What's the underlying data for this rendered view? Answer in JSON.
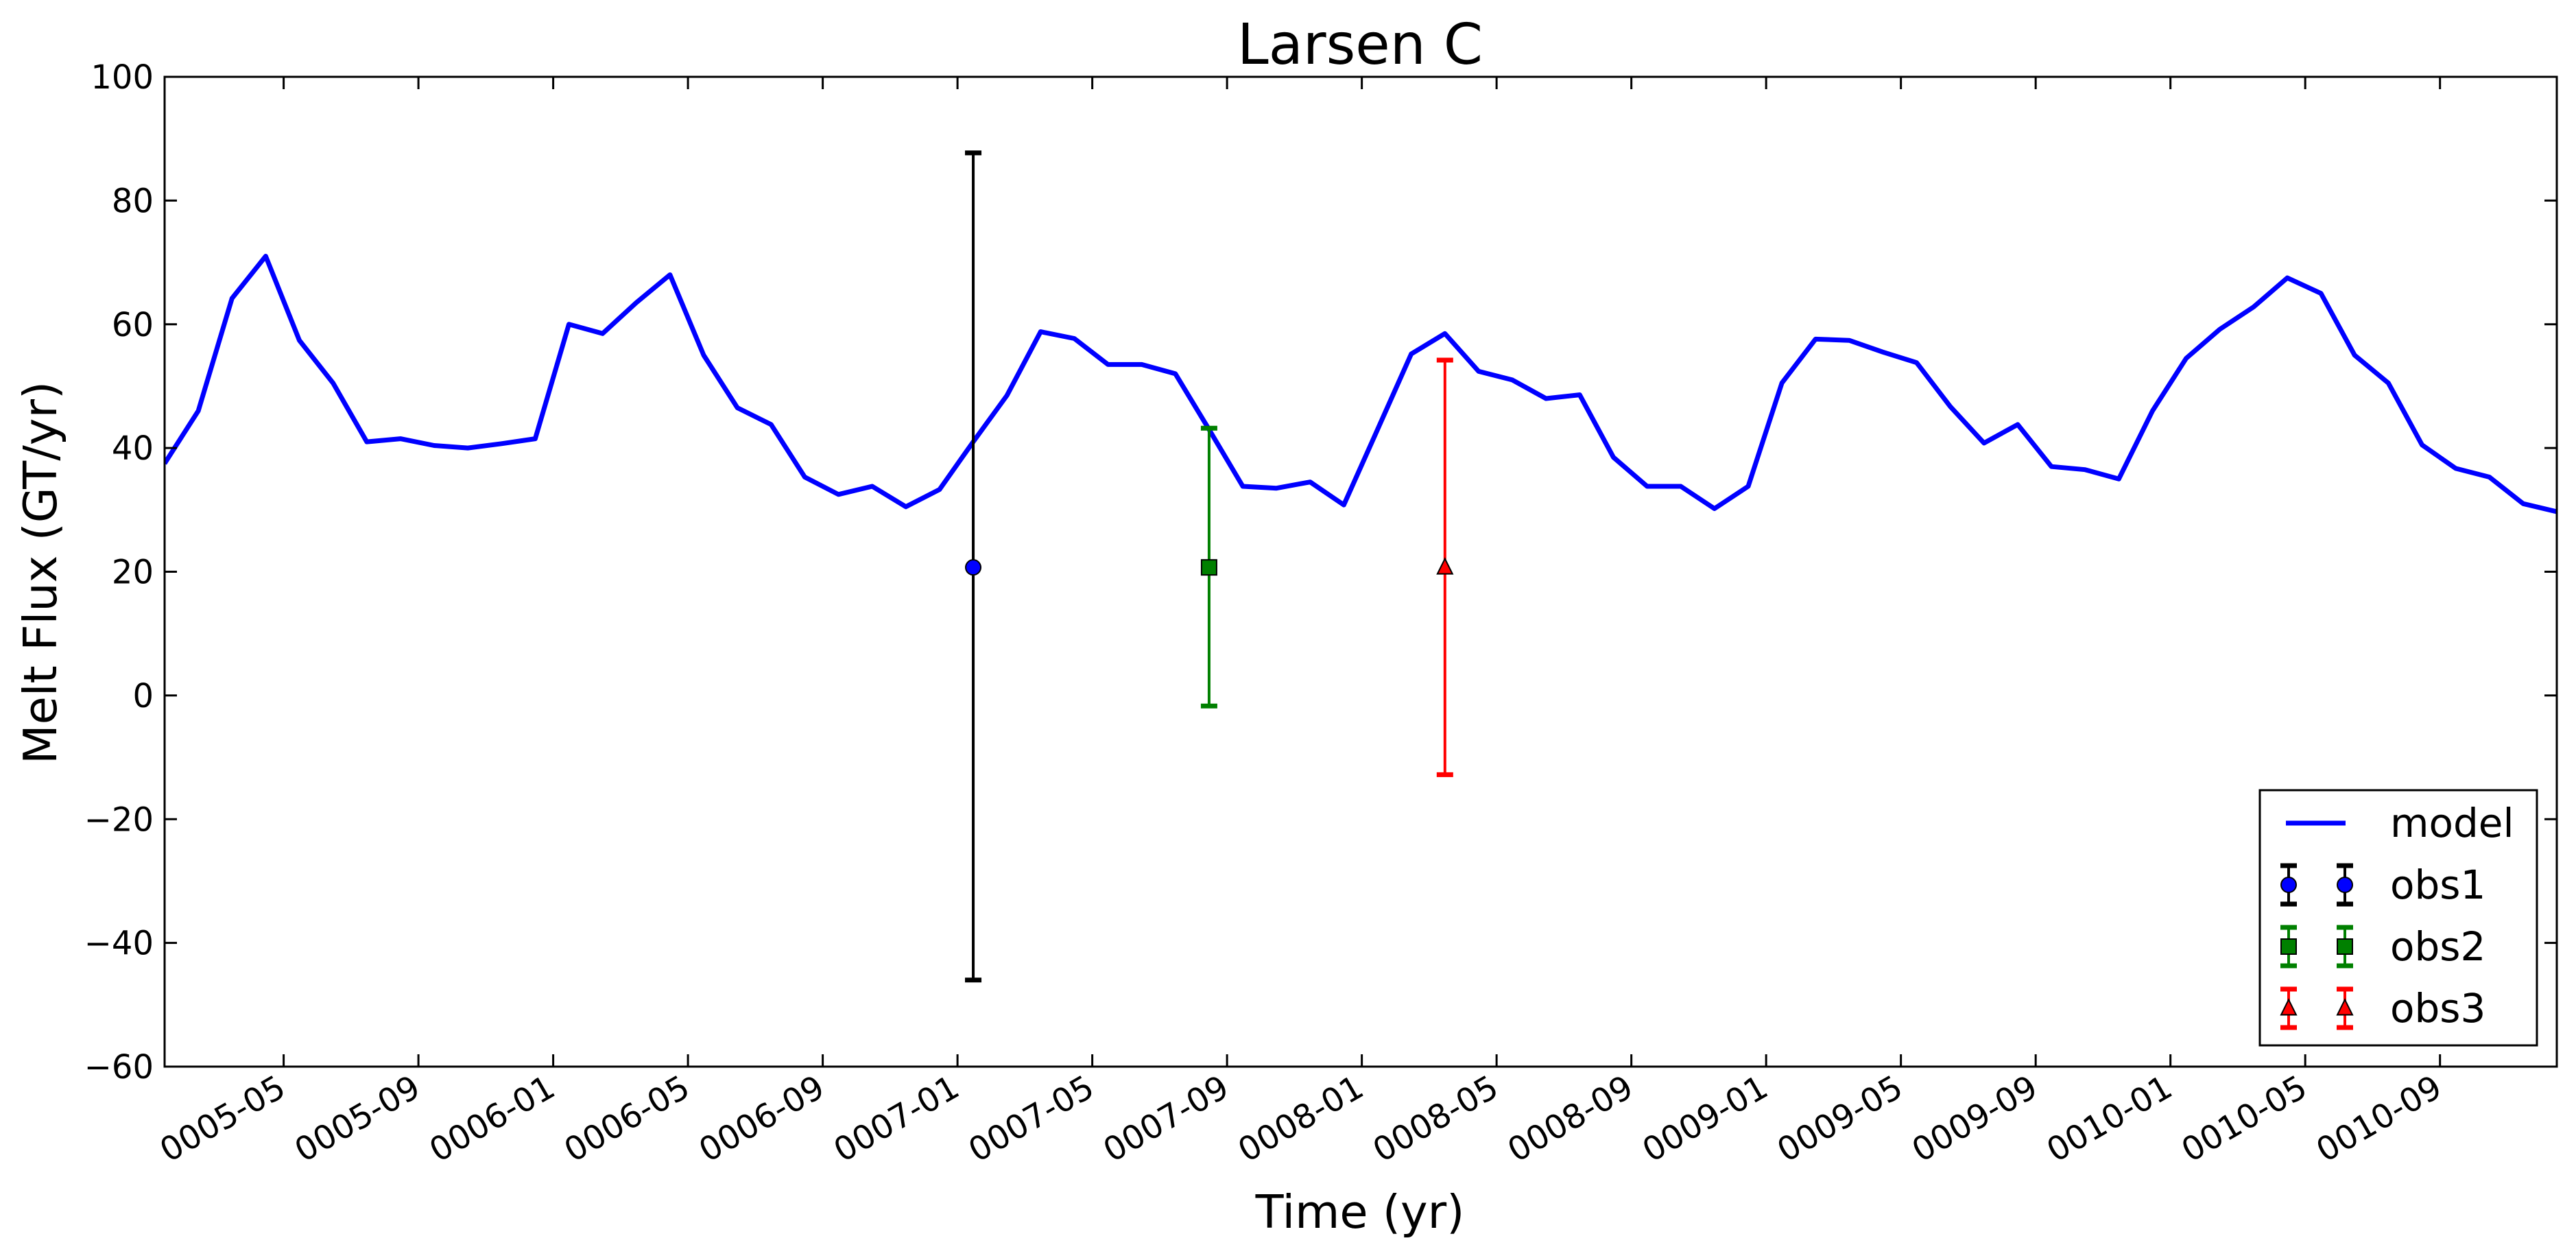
{
  "chart_data": {
    "type": "line",
    "title": "Larsen C",
    "xlabel": "Time (yr)",
    "ylabel": "Melt Flux (GT/yr)",
    "ylim": [
      -60,
      100
    ],
    "yticks": [
      -60,
      -40,
      -20,
      0,
      20,
      40,
      60,
      80,
      100
    ],
    "xlim": [
      "0005-01-15",
      "0010-12-15"
    ],
    "xticks": [
      "0005-05",
      "0005-09",
      "0006-01",
      "0006-05",
      "0006-09",
      "0007-01",
      "0007-05",
      "0007-09",
      "0008-01",
      "0008-05",
      "0008-09",
      "0009-01",
      "0009-05",
      "0009-09",
      "0010-01",
      "0010-05",
      "0010-09"
    ],
    "grid": false,
    "legend_position": "bottom-right",
    "series": [
      {
        "name": "model",
        "kind": "line",
        "color": "#0000ff",
        "x": [
          "0005-01-15",
          "0005-02-15",
          "0005-03-15",
          "0005-04-15",
          "0005-05-15",
          "0005-06-15",
          "0005-07-15",
          "0005-08-15",
          "0005-09-15",
          "0005-10-15",
          "0005-11-15",
          "0005-12-15",
          "0006-01-15",
          "0006-02-15",
          "0006-03-15",
          "0006-04-15",
          "0006-05-15",
          "0006-06-15",
          "0006-07-15",
          "0006-08-15",
          "0006-09-15",
          "0006-10-15",
          "0006-11-15",
          "0006-12-15",
          "0007-01-15",
          "0007-02-15",
          "0007-03-15",
          "0007-04-15",
          "0007-05-15",
          "0007-06-15",
          "0007-07-15",
          "0007-08-15",
          "0007-09-15",
          "0007-10-15",
          "0007-11-15",
          "0007-12-15",
          "0008-01-15",
          "0008-02-15",
          "0008-03-15",
          "0008-04-15",
          "0008-05-15",
          "0008-06-15",
          "0008-07-15",
          "0008-08-15",
          "0008-09-15",
          "0008-10-15",
          "0008-11-15",
          "0008-12-15",
          "0009-01-15",
          "0009-02-15",
          "0009-03-15",
          "0009-04-15",
          "0009-05-15",
          "0009-06-15",
          "0009-07-15",
          "0009-08-15",
          "0009-09-15",
          "0009-10-15",
          "0009-11-15",
          "0009-12-15",
          "0010-01-15",
          "0010-02-15",
          "0010-03-15",
          "0010-04-15",
          "0010-05-15",
          "0010-06-15",
          "0010-07-15",
          "0010-08-15",
          "0010-09-15",
          "0010-10-15",
          "0010-11-15",
          "0010-12-15"
        ],
        "values": [
          37.5,
          46,
          64.2,
          71,
          57.4,
          50.5,
          41,
          41.5,
          40.4,
          40,
          40.7,
          41.5,
          60,
          58.5,
          63.5,
          68,
          55,
          46.5,
          43.8,
          35.3,
          32.5,
          33.8,
          30.5,
          33.3,
          41,
          48.5,
          58.8,
          57.7,
          53.5,
          53.5,
          52,
          43,
          33.8,
          33.5,
          34.5,
          30.8,
          43,
          55.2,
          58.5,
          52.4,
          51,
          48,
          48.6,
          38.5,
          33.8,
          33.8,
          30.2,
          33.8,
          50.5,
          57.6,
          57.4,
          55.5,
          53.8,
          46.7,
          40.8,
          43.8,
          37,
          36.5,
          35,
          46,
          54.5,
          59.2,
          62.8,
          67.5,
          65,
          55,
          50.5,
          40.5,
          36.7,
          35.3,
          31,
          29.7
        ]
      },
      {
        "name": "obs1",
        "kind": "errorbar",
        "marker": "circle",
        "marker_color": "#0000ff",
        "bar_color": "#000000",
        "x": [
          "0007-01-15"
        ],
        "values": [
          20.7
        ],
        "err_low": [
          -46
        ],
        "err_high": [
          87.7
        ]
      },
      {
        "name": "obs2",
        "kind": "errorbar",
        "marker": "square",
        "marker_color": "#008000",
        "bar_color": "#008000",
        "x": [
          "0007-08-15"
        ],
        "values": [
          20.7
        ],
        "err_low": [
          -1.7
        ],
        "err_high": [
          43.2
        ]
      },
      {
        "name": "obs3",
        "kind": "errorbar",
        "marker": "triangle",
        "marker_color": "#ff0000",
        "bar_color": "#ff0000",
        "x": [
          "0008-03-15"
        ],
        "values": [
          20.7
        ],
        "err_low": [
          -12.8
        ],
        "err_high": [
          54.2
        ]
      }
    ]
  }
}
